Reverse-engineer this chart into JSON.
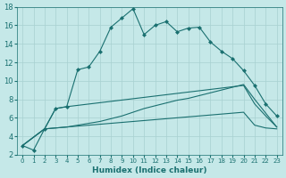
{
  "xlabel": "Humidex (Indice chaleur)",
  "xlim": [
    -0.5,
    23.5
  ],
  "ylim": [
    2,
    18
  ],
  "yticks": [
    2,
    4,
    6,
    8,
    10,
    12,
    14,
    16,
    18
  ],
  "xticks": [
    0,
    1,
    2,
    3,
    4,
    5,
    6,
    7,
    8,
    9,
    10,
    11,
    12,
    13,
    14,
    15,
    16,
    17,
    18,
    19,
    20,
    21,
    22,
    23
  ],
  "bg_color": "#c5e8e8",
  "grid_color": "#a8d0d0",
  "line_color": "#1a7070",
  "series": [
    {
      "x": [
        0,
        1,
        2,
        3,
        4,
        5,
        6,
        7,
        8,
        9,
        10,
        11,
        12,
        13,
        14,
        15,
        16,
        17,
        18,
        19,
        20,
        21,
        22,
        23
      ],
      "y": [
        3.0,
        2.5,
        4.8,
        7.0,
        7.2,
        11.2,
        11.5,
        13.2,
        15.8,
        16.8,
        17.8,
        15.0,
        16.0,
        16.4,
        15.3,
        15.7,
        15.8,
        14.2,
        13.2,
        12.4,
        11.1,
        9.5,
        7.5,
        6.2
      ],
      "marker": true
    },
    {
      "x": [
        0,
        2,
        3,
        4,
        20,
        21,
        22,
        23
      ],
      "y": [
        3.0,
        4.8,
        7.0,
        7.2,
        9.5,
        7.5,
        6.2,
        5.0
      ],
      "marker": false
    },
    {
      "x": [
        0,
        2,
        3,
        4,
        5,
        6,
        7,
        8,
        9,
        10,
        11,
        12,
        13,
        14,
        15,
        16,
        17,
        18,
        19,
        20,
        21,
        22,
        23
      ],
      "y": [
        3.0,
        4.8,
        4.9,
        5.0,
        5.2,
        5.4,
        5.6,
        5.9,
        6.2,
        6.6,
        7.0,
        7.3,
        7.6,
        7.9,
        8.1,
        8.4,
        8.7,
        9.0,
        9.3,
        9.6,
        8.0,
        6.5,
        5.0
      ],
      "marker": false
    },
    {
      "x": [
        0,
        2,
        3,
        4,
        5,
        6,
        7,
        8,
        9,
        10,
        11,
        12,
        13,
        14,
        15,
        16,
        17,
        18,
        19,
        20,
        21,
        22,
        23
      ],
      "y": [
        3.0,
        4.8,
        4.9,
        5.0,
        5.1,
        5.2,
        5.3,
        5.4,
        5.5,
        5.6,
        5.7,
        5.8,
        5.9,
        6.0,
        6.1,
        6.2,
        6.3,
        6.4,
        6.5,
        6.6,
        5.2,
        4.9,
        4.8
      ],
      "marker": false
    }
  ]
}
